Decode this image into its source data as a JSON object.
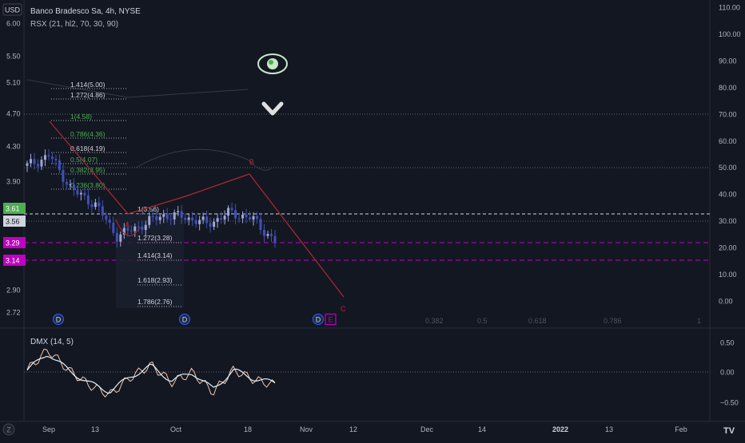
{
  "header": {
    "currency": "USD",
    "symbol_line": "Banco Bradesco Sa, 4h, NYSE",
    "indicator_line": "RSX (21, hl2, 70, 30, 90)"
  },
  "price_axis": {
    "left_ticks": [
      "6.00",
      "5.50",
      "5.10",
      "4.70",
      "4.30",
      "3.90",
      "3.56",
      "3.29",
      "3.14",
      "2.90",
      "2.72"
    ],
    "badges": [
      {
        "label": "3.61",
        "color": "#4caf50"
      },
      {
        "label": "3.56",
        "color": "#d1d4dc"
      },
      {
        "label": "3.29",
        "color": "#c000c0"
      },
      {
        "label": "3.14",
        "color": "#c000c0"
      }
    ],
    "right_ticks": [
      "110.00",
      "100.00",
      "90.00",
      "80.00",
      "70.00",
      "60.00",
      "50.00",
      "40.00",
      "30.00",
      "20.00",
      "10.00",
      "0.00"
    ]
  },
  "fib_levels": {
    "upper": [
      {
        "label": "1.414(5.00)",
        "color": "#d1d4dc"
      },
      {
        "label": "1.272(4.86)",
        "color": "#d1d4dc"
      },
      {
        "label": "1(4.58)",
        "color": "#4caf50"
      },
      {
        "label": "0.786(4.36)",
        "color": "#4caf50"
      },
      {
        "label": "0.618(4.19)",
        "color": "#d1d4dc"
      },
      {
        "label": "0.5(4.07)",
        "color": "#4caf50"
      },
      {
        "label": "0.382(3.95)",
        "color": "#4caf50"
      },
      {
        "label": "0.236(3.80)",
        "color": "#4caf50"
      }
    ],
    "lower": [
      {
        "label": "1(3.56)"
      },
      {
        "label": "1.272(3.28)"
      },
      {
        "label": "1.414(3.14)"
      },
      {
        "label": "1.618(2.93)"
      },
      {
        "label": "1.786(2.76)"
      }
    ],
    "bottom_row": [
      "0.382",
      "0.5",
      "0.618",
      "0.786",
      "1"
    ]
  },
  "wave_labels": [
    "A",
    "B",
    "C"
  ],
  "event_markers": [
    "D",
    "D",
    "D",
    "E"
  ],
  "lower_pane": {
    "title": "DMX (14, 5)",
    "ticks": [
      "0.50",
      "0.00",
      "−0.50"
    ]
  },
  "time_axis": {
    "labels": [
      "Sep",
      "13",
      "Oct",
      "18",
      "Nov",
      "12",
      "Dec",
      "14",
      "2022",
      "13",
      "Feb"
    ]
  },
  "footer": {
    "left_badge": "Z",
    "right_badge": "TV"
  },
  "chart_data": {
    "type": "line",
    "title": "Banco Bradesco Sa, 4h, NYSE",
    "xlabel": "",
    "ylabel": "USD",
    "ylim": [
      2.72,
      6.0
    ],
    "x": [
      "Sep 2",
      "Sep 7",
      "Sep 13",
      "Sep 17",
      "Sep 23",
      "Sep 29",
      "Oct 5",
      "Oct 11",
      "Oct 15",
      "Oct 19",
      "Oct 21",
      "Oct 22"
    ],
    "series": [
      {
        "values": [
          4.38,
          4.5,
          4.1,
          3.95,
          3.58,
          3.7,
          3.82,
          3.8,
          3.72,
          3.85,
          3.78,
          3.52
        ]
      }
    ],
    "wave_points": [
      {
        "label": "A",
        "x": "Sep 22",
        "y": 3.56
      },
      {
        "label": "B",
        "x": "Oct 19",
        "y": 3.93
      },
      {
        "label": "C",
        "x": "Nov 9",
        "y": 2.78
      }
    ],
    "horizontal_levels": [
      3.56,
      3.29,
      3.14
    ],
    "dmx": {
      "ylim": [
        -0.6,
        0.6
      ],
      "values": [
        0.05,
        0.45,
        0.05,
        -0.25,
        -0.45,
        -0.1,
        0.15,
        -0.2,
        0.0,
        -0.4,
        0.05,
        -0.15,
        -0.25
      ]
    }
  }
}
